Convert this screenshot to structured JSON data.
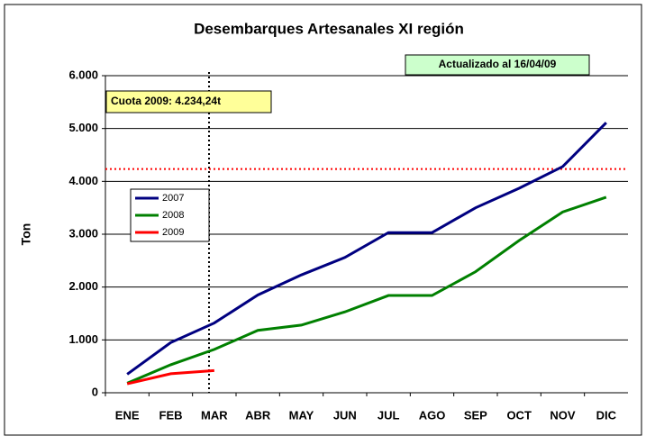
{
  "chart_data": {
    "type": "line",
    "title": "Desembarques Artesanales XI región",
    "y_label": "Ton",
    "categories": [
      "ENE",
      "FEB",
      "MAR",
      "ABR",
      "MAY",
      "JUN",
      "JUL",
      "AGO",
      "SEP",
      "OCT",
      "NOV",
      "DIC"
    ],
    "series": [
      {
        "name": "2007",
        "color": "#000080",
        "values": [
          350,
          950,
          1320,
          1850,
          2230,
          2560,
          3030,
          3030,
          3500,
          3870,
          4280,
          5110
        ]
      },
      {
        "name": "2008",
        "color": "#008000",
        "values": [
          180,
          530,
          820,
          1180,
          1280,
          1530,
          1840,
          1840,
          2290,
          2880,
          3420,
          3700
        ]
      },
      {
        "name": "2009",
        "color": "#ff0000",
        "values": [
          170,
          360,
          420,
          null,
          null,
          null,
          null,
          null,
          null,
          null,
          null,
          null
        ]
      }
    ],
    "ylim": [
      0,
      6000
    ],
    "yticks": [
      0,
      {
        "value": 1000,
        "label": "1.000"
      },
      {
        "value": 2000,
        "label": "2.000"
      },
      {
        "value": 3000,
        "label": "3.000"
      },
      {
        "value": 4000,
        "label": "4.000"
      },
      {
        "value": 5000,
        "label": "5.000"
      },
      {
        "value": 6000,
        "label": "6.000"
      }
    ],
    "grid": true,
    "reference_line": {
      "value": 4234.24,
      "label": "Cuota 2009: 4.234,24t",
      "color": "#ff0000"
    },
    "note": "Actualizado al 16/04/09"
  }
}
